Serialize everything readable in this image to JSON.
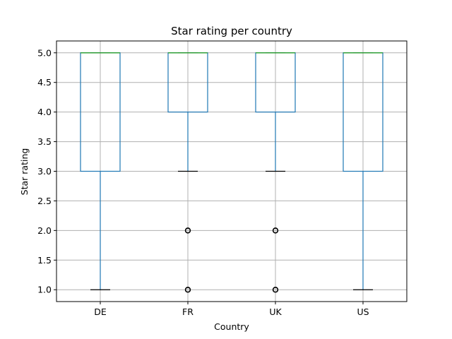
{
  "chart_data": {
    "type": "box",
    "title": "Star rating per country",
    "xlabel": "Country",
    "ylabel": "Star rating",
    "categories": [
      "DE",
      "FR",
      "UK",
      "US"
    ],
    "ylim": [
      0.8,
      5.2
    ],
    "yticks": [
      "1.0",
      "1.5",
      "2.0",
      "2.5",
      "3.0",
      "3.5",
      "4.0",
      "4.5",
      "5.0"
    ],
    "grid": true,
    "boxes": [
      {
        "category": "DE",
        "whisker_low": 1.0,
        "q1": 3.0,
        "median": 5.0,
        "q3": 5.0,
        "whisker_high": 5.0,
        "outliers": []
      },
      {
        "category": "FR",
        "whisker_low": 3.0,
        "q1": 4.0,
        "median": 5.0,
        "q3": 5.0,
        "whisker_high": 5.0,
        "outliers": [
          2.0,
          1.0
        ]
      },
      {
        "category": "UK",
        "whisker_low": 3.0,
        "q1": 4.0,
        "median": 5.0,
        "q3": 5.0,
        "whisker_high": 5.0,
        "outliers": [
          2.0,
          1.0
        ]
      },
      {
        "category": "US",
        "whisker_low": 1.0,
        "q1": 3.0,
        "median": 5.0,
        "q3": 5.0,
        "whisker_high": 5.0,
        "outliers": []
      }
    ],
    "colors": {
      "box": "#1f77b4",
      "median": "#2ca02c",
      "whisker_cap": "#000000",
      "grid": "#b0b0b0"
    }
  }
}
